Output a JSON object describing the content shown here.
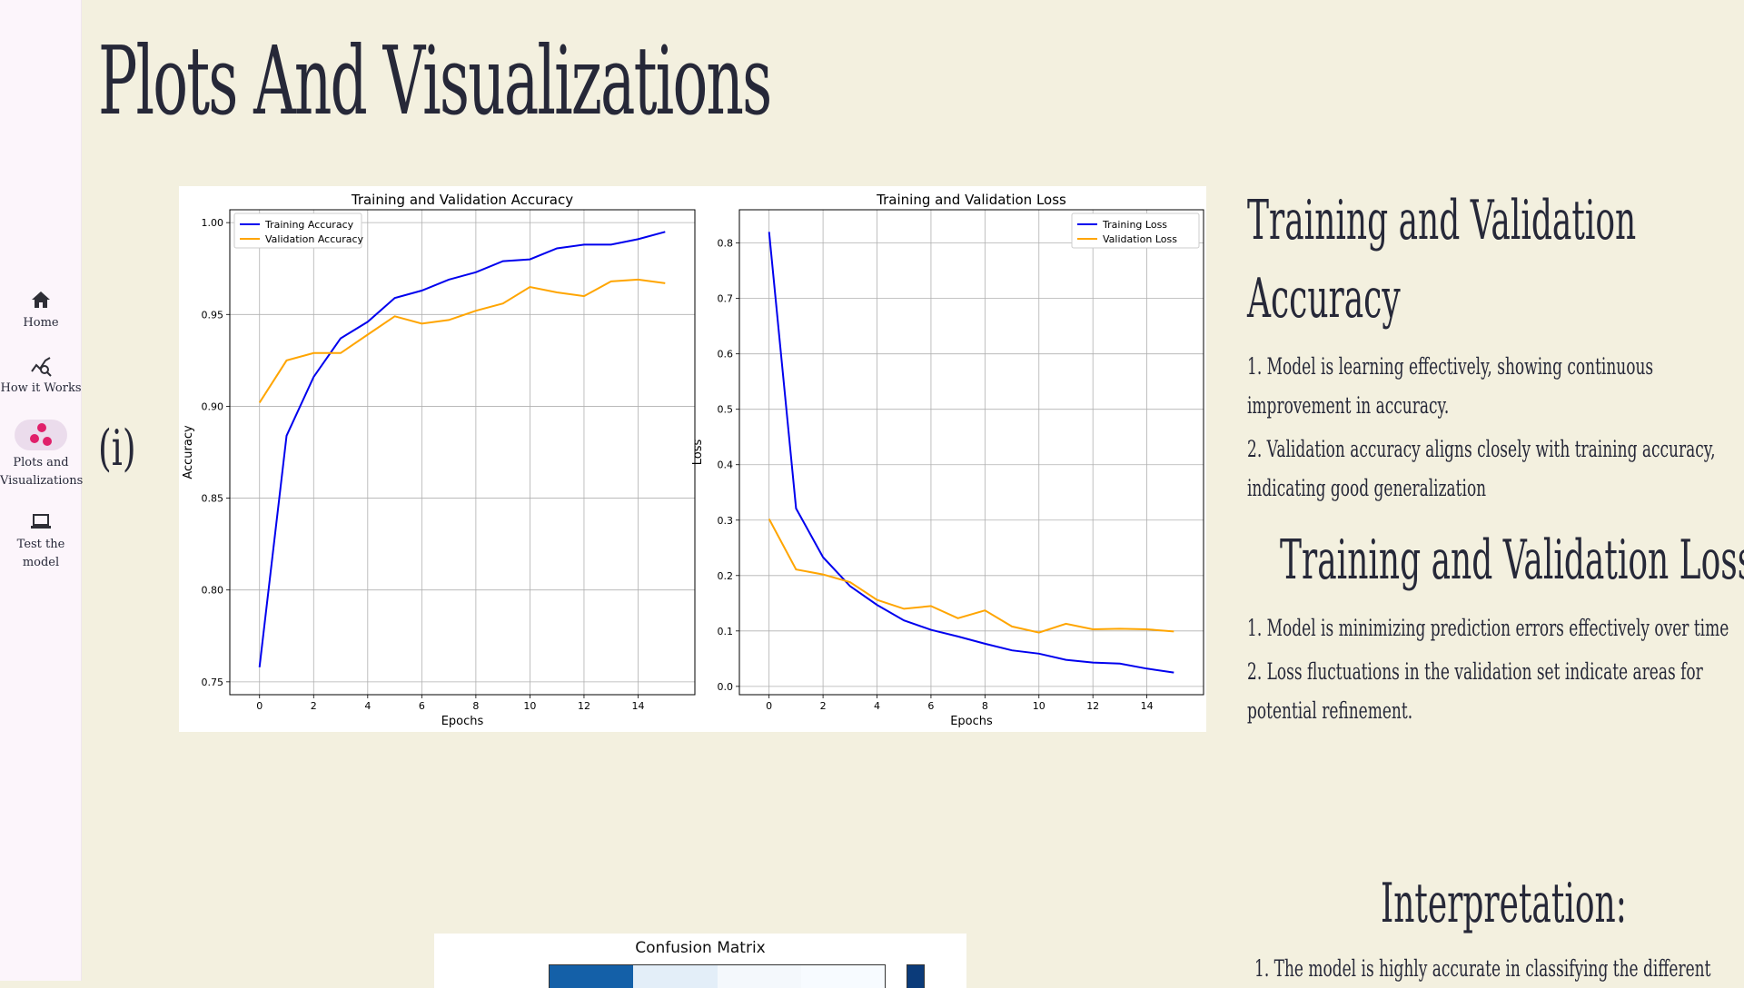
{
  "page": {
    "title": "Plots And Visualizations",
    "section_marker": "(i)"
  },
  "sidebar": {
    "items": [
      {
        "label": "Home",
        "icon": "home-icon"
      },
      {
        "label": "How it Works",
        "icon": "chart-search-icon"
      },
      {
        "label_line1": "Plots and",
        "label_line2": "Visualizations",
        "icon": "scatter-dots-icon",
        "active": true
      },
      {
        "label_line1": "Test the",
        "label_line2": "model",
        "icon": "laptop-icon"
      }
    ]
  },
  "right_panel": {
    "accuracy_heading_line1": "Training and Validation",
    "accuracy_heading_line2": "Accuracy",
    "accuracy_points": [
      "1. Model is learning effectively, showing continuous",
      "improvement in accuracy.",
      "2. Validation accuracy aligns closely with training accuracy,",
      "indicating good generalization"
    ],
    "loss_heading": "Training and Validation Loss:",
    "loss_points": [
      "1. Model is minimizing prediction errors effectively over time",
      "2. Loss fluctuations in the validation set indicate areas for",
      "potential refinement."
    ],
    "interpretation_heading": "Interpretation:",
    "interpretation_points": [
      "1. The model is highly accurate in classifying the different"
    ]
  },
  "confusion_matrix": {
    "title": "Confusion Matrix",
    "cell_colors": [
      "#1460a8",
      "#e3eef8",
      "#f4f8fc",
      "#f7fbff"
    ]
  },
  "colors": {
    "background": "#f3f0df",
    "sidebar": "#fcf5fb",
    "training": "#0000ee",
    "validation": "#ffa500",
    "accent": "#e0206a"
  },
  "chart_data": [
    {
      "type": "line",
      "title": "Training and Validation Accuracy",
      "xlabel": "Epochs",
      "ylabel": "Accuracy",
      "x": [
        0,
        1,
        2,
        3,
        4,
        5,
        6,
        7,
        8,
        9,
        10,
        11,
        12,
        13,
        14,
        15
      ],
      "xticks": [
        "0",
        "2",
        "4",
        "6",
        "8",
        "10",
        "12",
        "14"
      ],
      "yticks": [
        "0.75",
        "0.80",
        "0.85",
        "0.90",
        "0.95",
        "1.00"
      ],
      "xlim": [
        -1.1,
        16.1
      ],
      "ylim": [
        0.743,
        1.007
      ],
      "grid": true,
      "legend_position": "top-left",
      "series": [
        {
          "name": "Training Accuracy",
          "color": "#0000ee",
          "values": [
            0.758,
            0.884,
            0.916,
            0.937,
            0.946,
            0.959,
            0.963,
            0.969,
            0.973,
            0.979,
            0.98,
            0.986,
            0.988,
            0.988,
            0.991,
            0.995
          ]
        },
        {
          "name": "Validation Accuracy",
          "color": "#ffa500",
          "values": [
            0.902,
            0.925,
            0.929,
            0.929,
            0.939,
            0.949,
            0.945,
            0.947,
            0.952,
            0.956,
            0.965,
            0.962,
            0.96,
            0.968,
            0.969,
            0.967
          ]
        }
      ]
    },
    {
      "type": "line",
      "title": "Training and Validation Loss",
      "xlabel": "Epochs",
      "ylabel": "Loss",
      "x": [
        0,
        1,
        2,
        3,
        4,
        5,
        6,
        7,
        8,
        9,
        10,
        11,
        12,
        13,
        14,
        15
      ],
      "xticks": [
        "0",
        "2",
        "4",
        "6",
        "8",
        "10",
        "12",
        "14"
      ],
      "yticks": [
        "0.0",
        "0.1",
        "0.2",
        "0.3",
        "0.4",
        "0.5",
        "0.6",
        "0.7",
        "0.8"
      ],
      "xlim": [
        -1.1,
        16.1
      ],
      "ylim": [
        -0.015,
        0.86
      ],
      "grid": true,
      "legend_position": "top-right",
      "series": [
        {
          "name": "Training Loss",
          "color": "#0000ee",
          "values": [
            0.82,
            0.321,
            0.233,
            0.181,
            0.147,
            0.119,
            0.102,
            0.09,
            0.077,
            0.065,
            0.059,
            0.048,
            0.043,
            0.041,
            0.032,
            0.025
          ]
        },
        {
          "name": "Validation Loss",
          "color": "#ffa500",
          "values": [
            0.302,
            0.211,
            0.202,
            0.188,
            0.156,
            0.14,
            0.145,
            0.123,
            0.137,
            0.108,
            0.097,
            0.113,
            0.103,
            0.104,
            0.103,
            0.099
          ]
        }
      ]
    }
  ]
}
